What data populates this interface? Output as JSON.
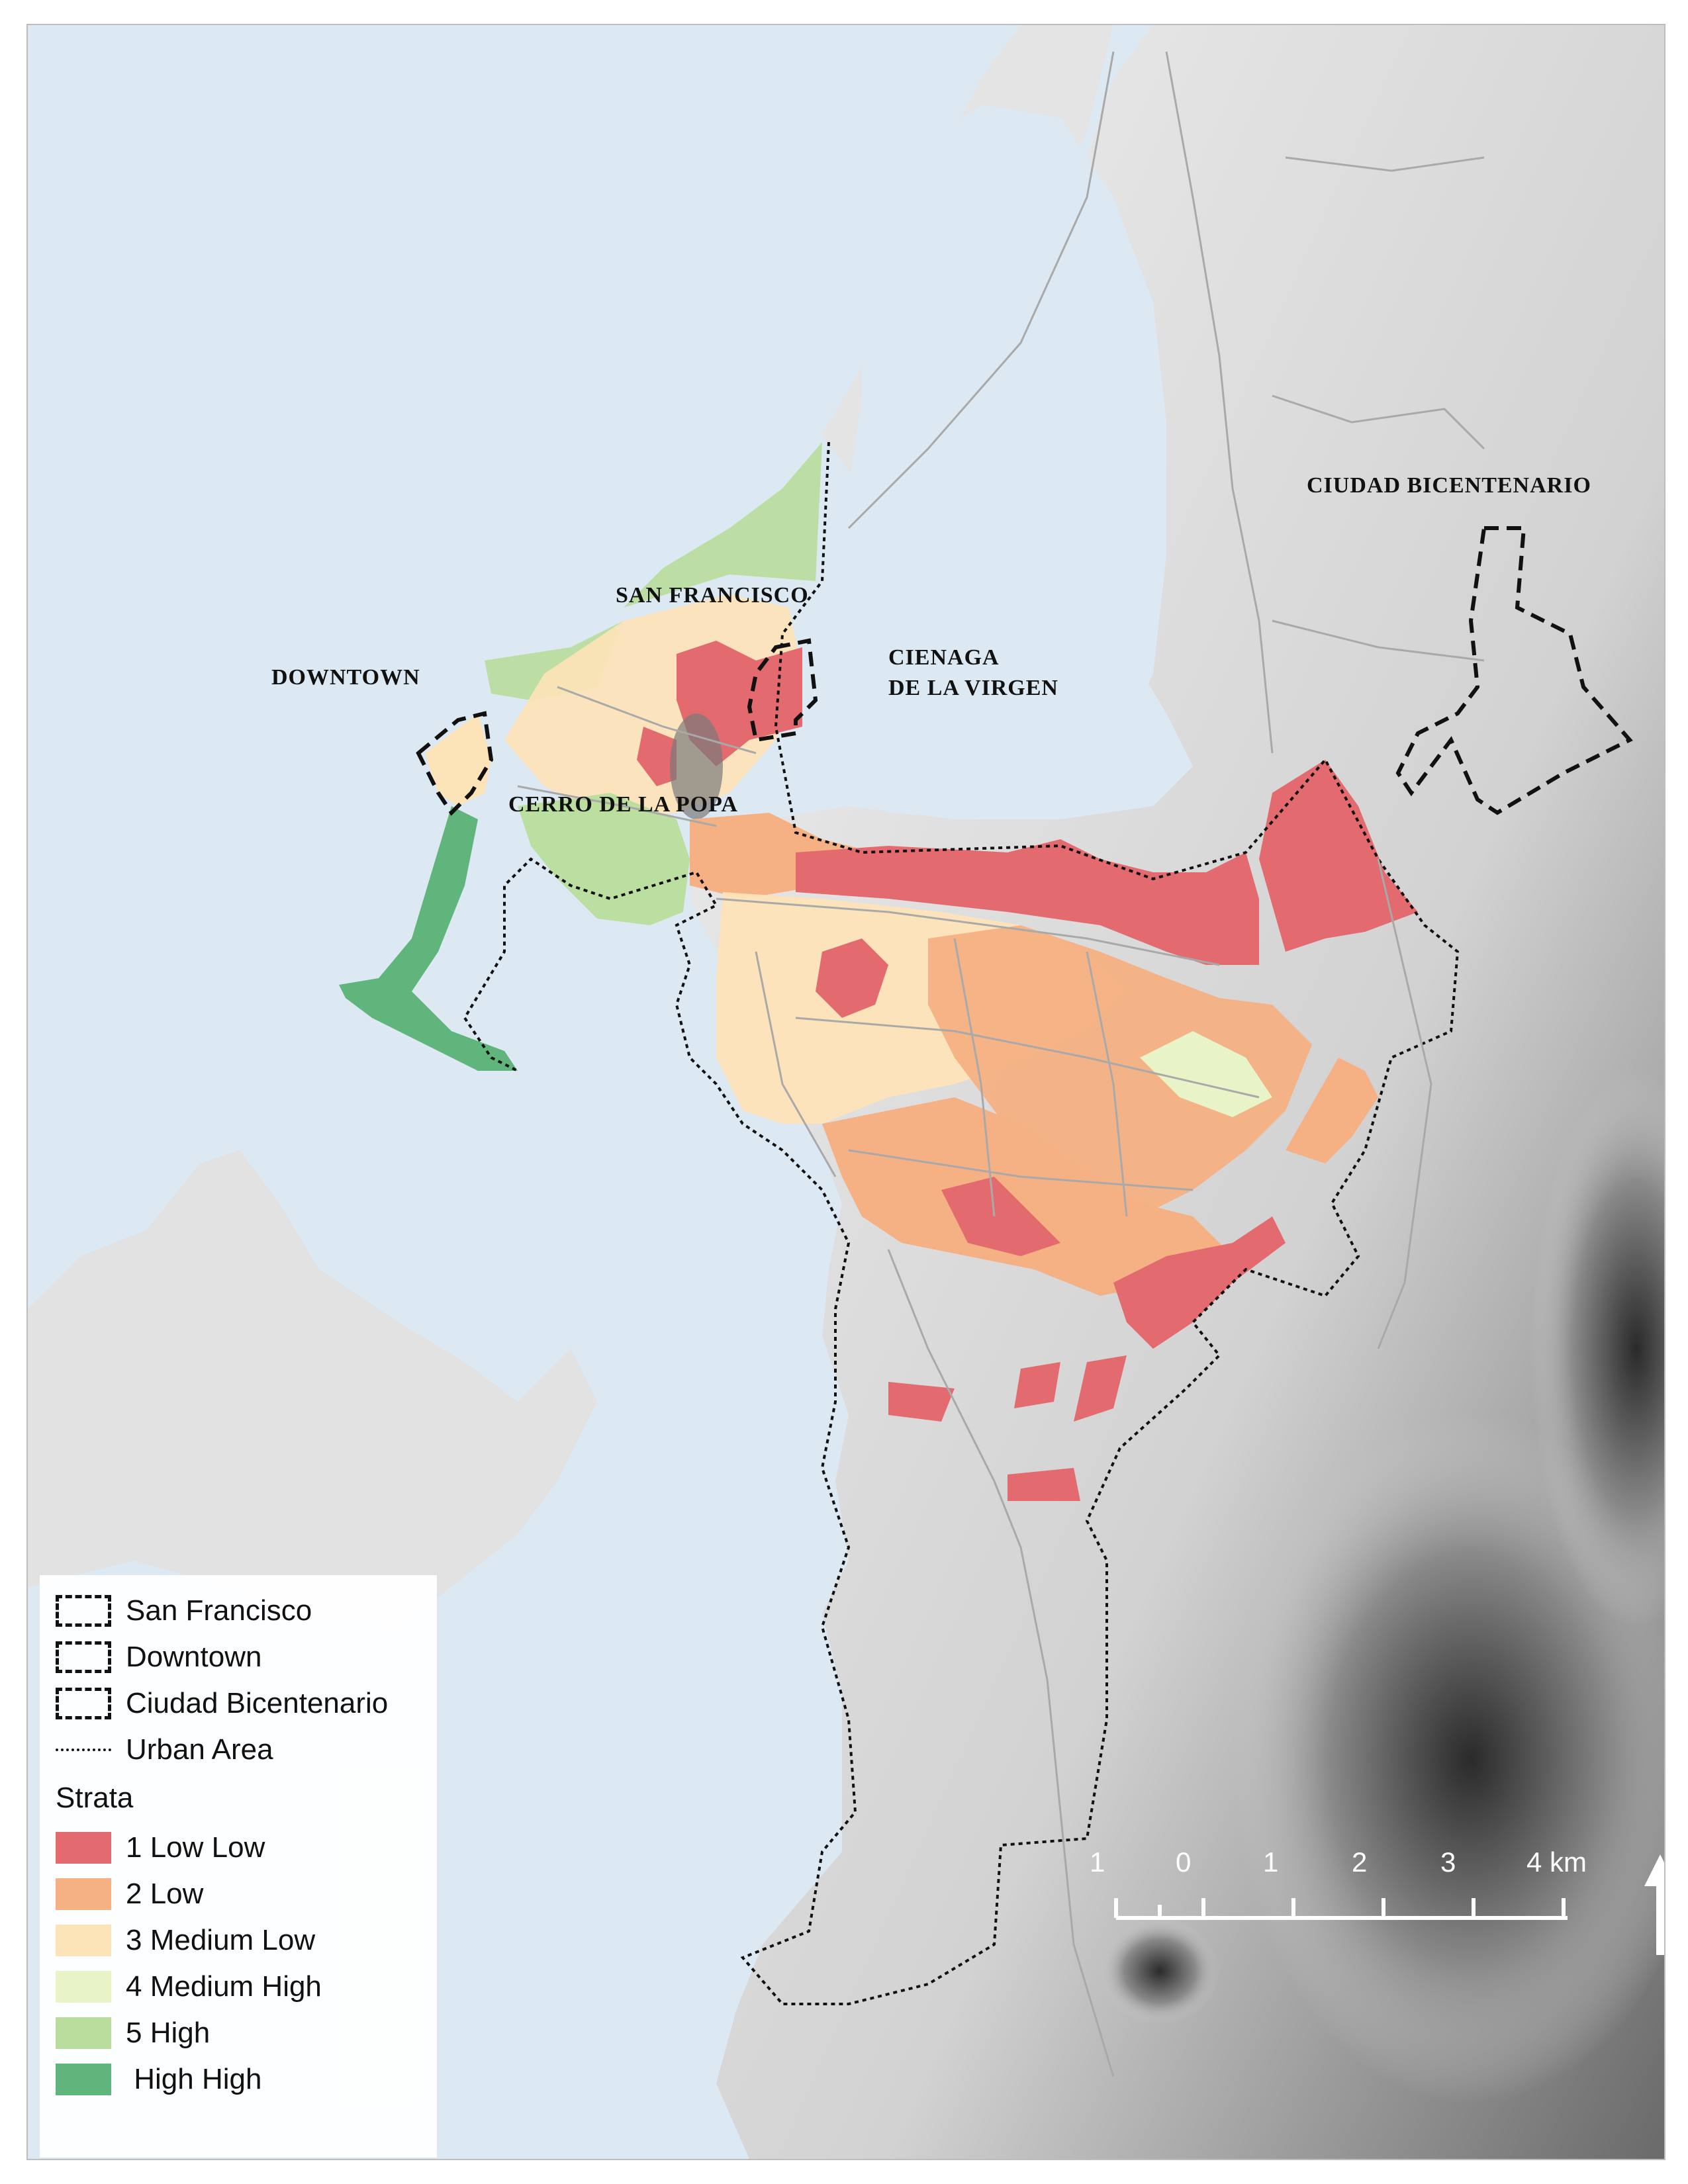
{
  "labels": {
    "san_francisco": "SAN FRANCISCO",
    "downtown": "DOWNTOWN",
    "cerro": "CERRO DE LA POPA",
    "cienaga_line1": "CIENAGA",
    "cienaga_line2": "DE LA VIRGEN",
    "bicentenario": "CIUDAD BICENTENARIO"
  },
  "legend": {
    "boundaries": [
      {
        "label": "San Francisco",
        "symbol": "dashed-box"
      },
      {
        "label": "Downtown",
        "symbol": "dashed-box"
      },
      {
        "label": "Ciudad Bicentenario",
        "symbol": "dashed-box"
      },
      {
        "label": "Urban Area",
        "symbol": "dotted-line"
      }
    ],
    "strata_title": "Strata",
    "strata": [
      {
        "label": "1 Low Low",
        "color": "#e36a6e"
      },
      {
        "label": "2 Low",
        "color": "#f5b083"
      },
      {
        "label": "3 Medium Low",
        "color": "#fde3b8"
      },
      {
        "label": "4 Medium High",
        "color": "#e8f3c8"
      },
      {
        "label": "5 High",
        "color": "#b8dd9c"
      },
      {
        "label": " High High",
        "color": "#5fb57b"
      }
    ]
  },
  "scale_bar": {
    "ticks": [
      "1",
      "0",
      "1",
      "2",
      "3",
      "4 km"
    ]
  },
  "colors": {
    "water": "#dce9f3",
    "land": "#e9e9e9",
    "boundary": "#111111"
  }
}
